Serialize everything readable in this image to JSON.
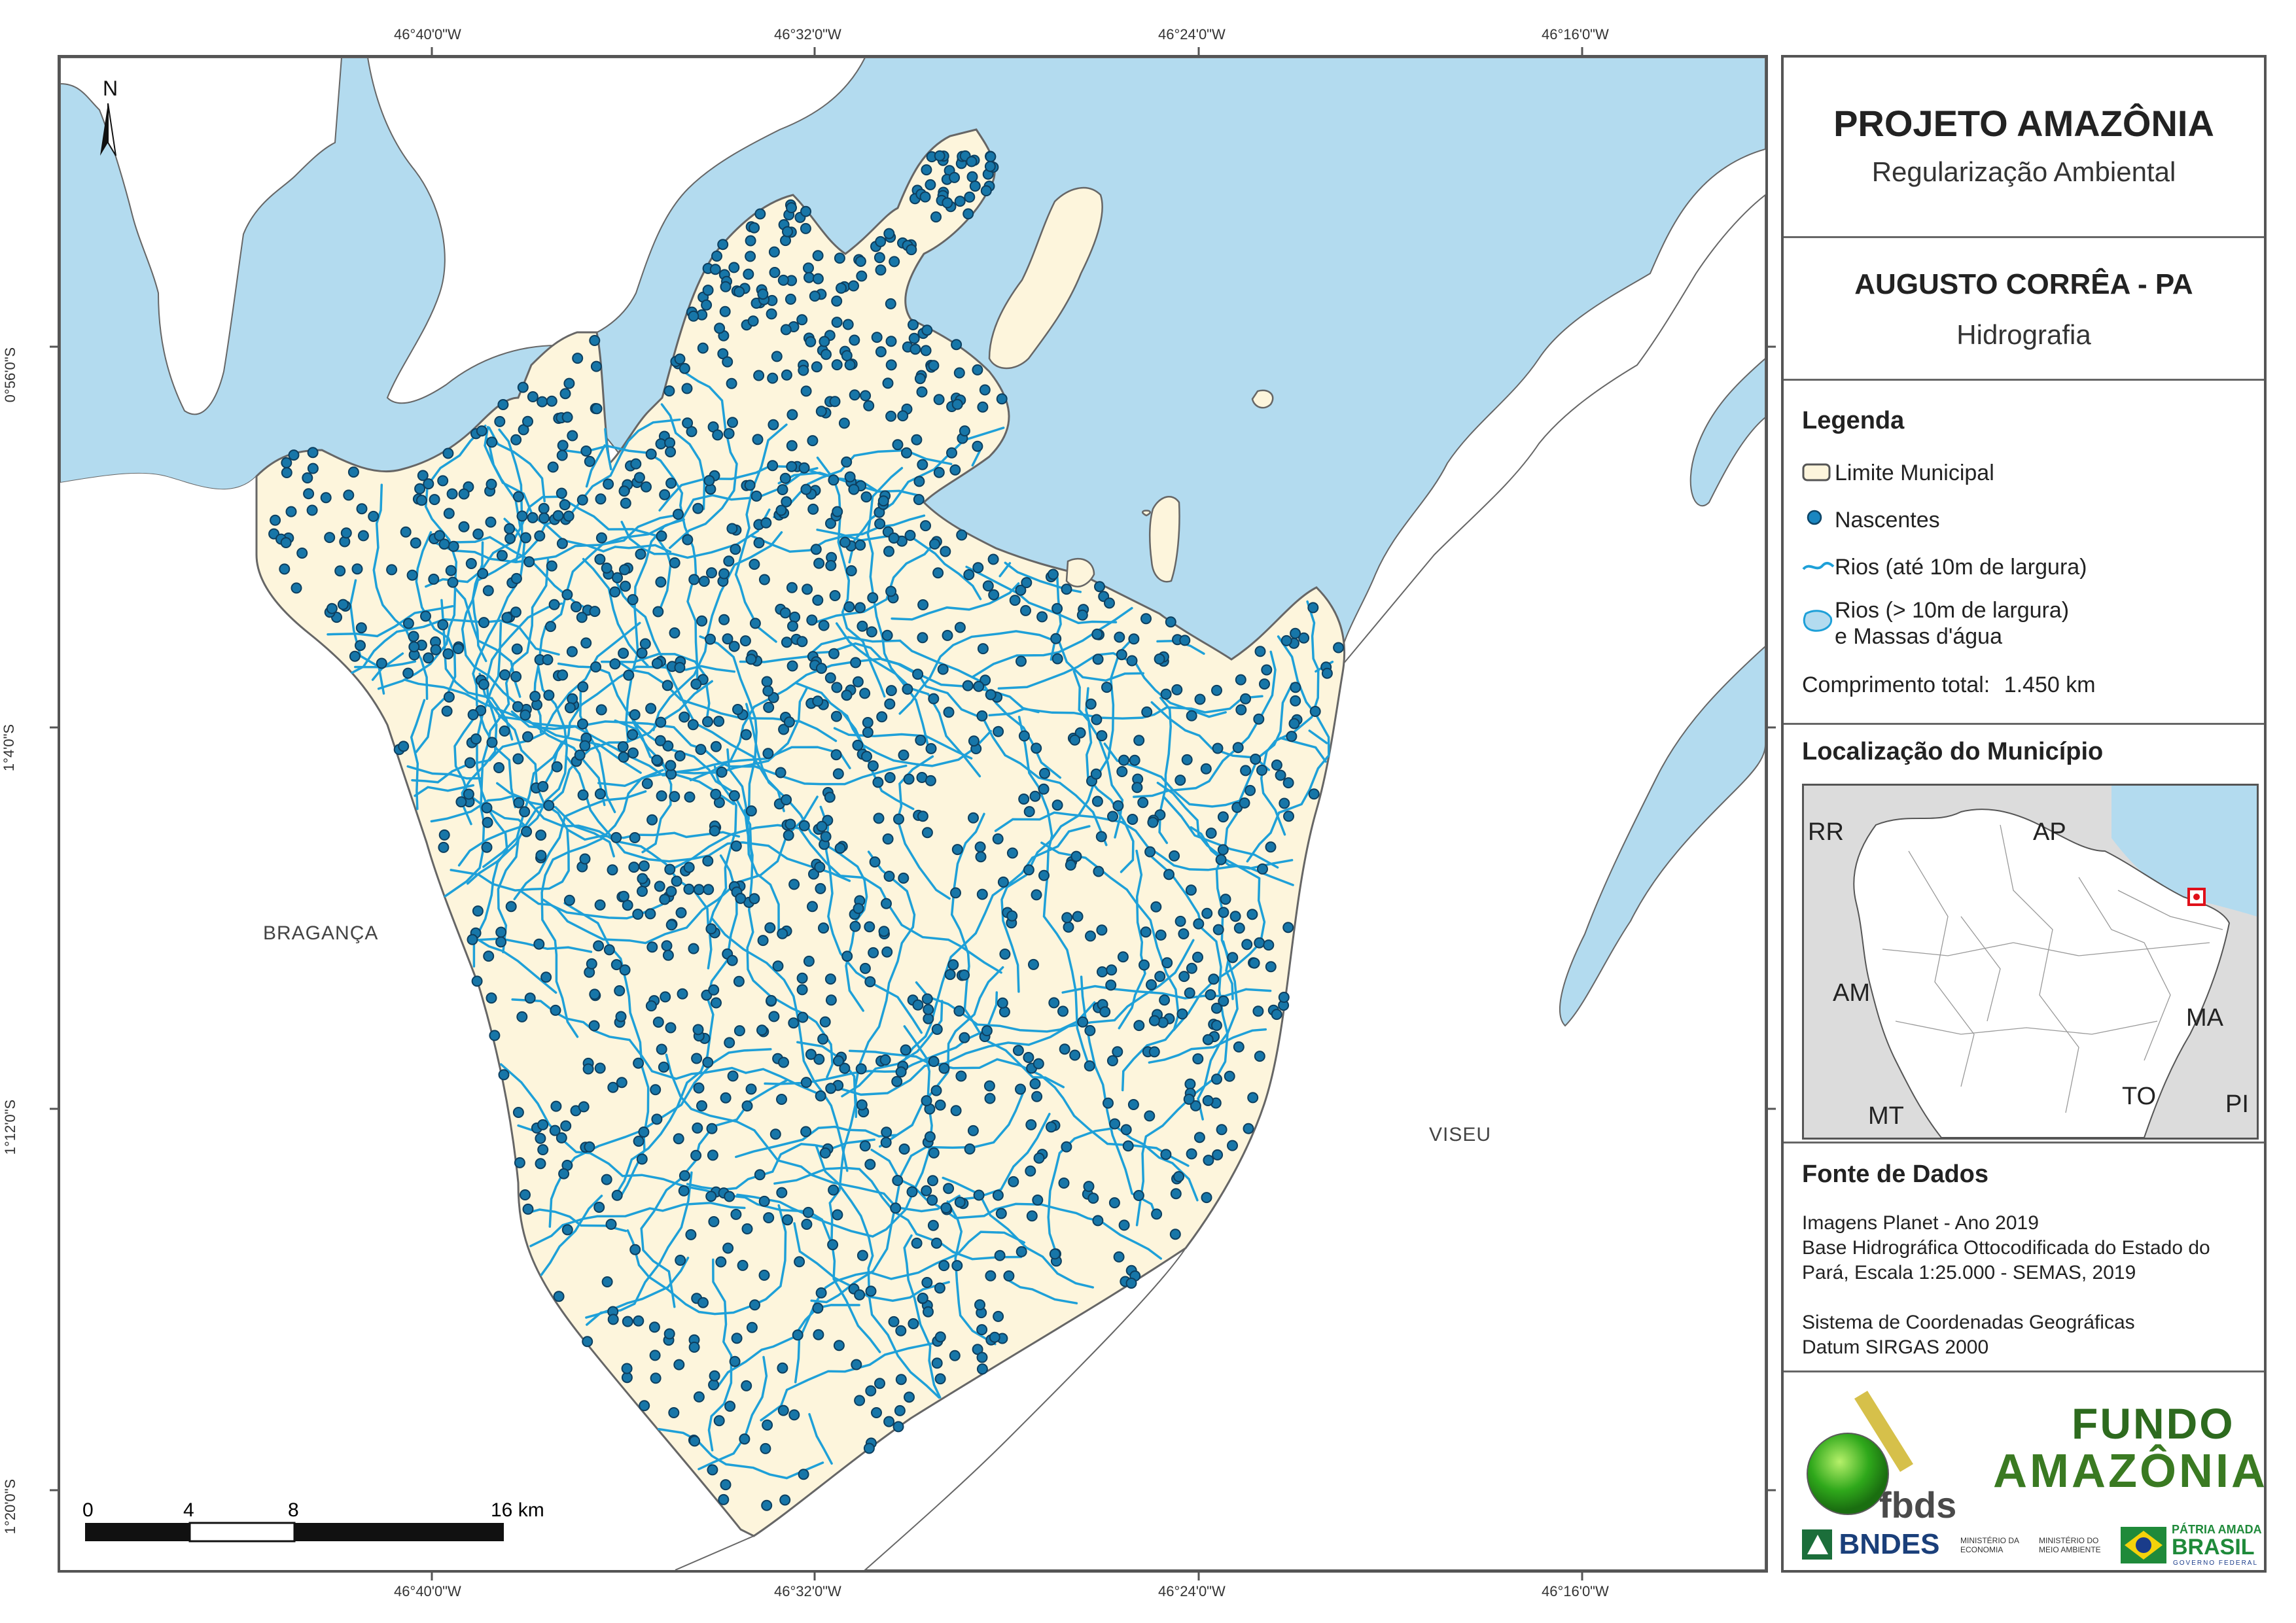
{
  "map": {
    "coords": {
      "lon_top": [
        "46°40'0\"W",
        "46°32'0\"W",
        "46°24'0\"W",
        "46°16'0\"W"
      ],
      "lon_bottom": [
        "46°40'0\"W",
        "46°32'0\"W",
        "46°24'0\"W",
        "46°16'0\"W"
      ],
      "lat_left": [
        "0°56'0\"S",
        "1°4'0\"S",
        "1°12'0\"S",
        "1°20'0\"S"
      ]
    },
    "north_label": "N",
    "place_labels": {
      "braganca": "BRAGANÇA",
      "viseu": "VISEU"
    },
    "scale_bar": {
      "ticks": [
        "0",
        "4",
        "8",
        "16 km"
      ]
    },
    "colors": {
      "water": "#b3dbef",
      "municipality": "#fdf5dc",
      "border": "#666666",
      "river": "#1ea0d8",
      "spring": "#1776a8"
    }
  },
  "panel": {
    "title": "PROJETO AMAZÔNIA",
    "subtitle": "Regularização Ambiental",
    "municipality": "AUGUSTO CORRÊA - PA",
    "theme": "Hidrografia",
    "legend": {
      "heading": "Legenda",
      "items": {
        "limit": "Limite Municipal",
        "springs": "Nascentes",
        "rivers_small": "Rios (até 10m de largura)",
        "rivers_large_1": "Rios (> 10m de largura)",
        "rivers_large_2": "e Massas d'água"
      },
      "total_label": "Comprimento total:",
      "total_value": "1.450 km"
    },
    "location": {
      "heading": "Localização do Município",
      "states": [
        "RR",
        "AP",
        "AM",
        "MA",
        "TO",
        "MT",
        "PI"
      ]
    },
    "sources": {
      "heading": "Fonte de Dados",
      "lines": [
        "Imagens Planet - Ano 2019",
        "Base Hidrográfica Ottocodificada do Estado do",
        "Pará, Escala 1:25.000 - SEMAS, 2019",
        "",
        "Sistema de Coordenadas Geográficas",
        "Datum SIRGAS 2000"
      ]
    },
    "logos": {
      "fbds": "fbds",
      "fundo_1": "FUNDO",
      "fundo_2": "AMAZÔNIA",
      "bndes": "BNDES",
      "min_economia": "MINISTÉRIO DA ECONOMIA",
      "min_meio_ambiente": "MINISTÉRIO DO MEIO AMBIENTE",
      "patria_1": "PÁTRIA AMADA",
      "patria_2": "BRASIL",
      "patria_3": "GOVERNO FEDERAL"
    }
  }
}
